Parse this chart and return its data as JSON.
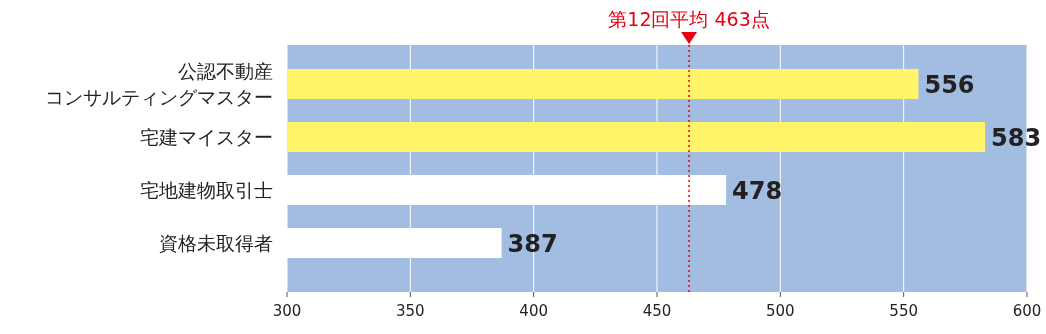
{
  "chart_data": {
    "type": "bar",
    "orientation": "horizontal",
    "categories": [
      "公認不動産コンサルティングマスター",
      "宅建マイスター",
      "宅地建物取引士",
      "資格未取得者"
    ],
    "values": [
      556,
      583,
      478,
      387
    ],
    "colors": [
      "#fff46a",
      "#fff46a",
      "#ffffff",
      "#ffffff"
    ],
    "data_labels": true,
    "xlim": [
      300,
      600
    ],
    "xticks": [
      300,
      350,
      400,
      450,
      500,
      550,
      600
    ],
    "grid": "x",
    "ref_lines": [
      {
        "axis": "x",
        "value": 463,
        "label": "第12回平均 463点",
        "color": "#e60012",
        "line_style": "dotted"
      }
    ]
  }
}
